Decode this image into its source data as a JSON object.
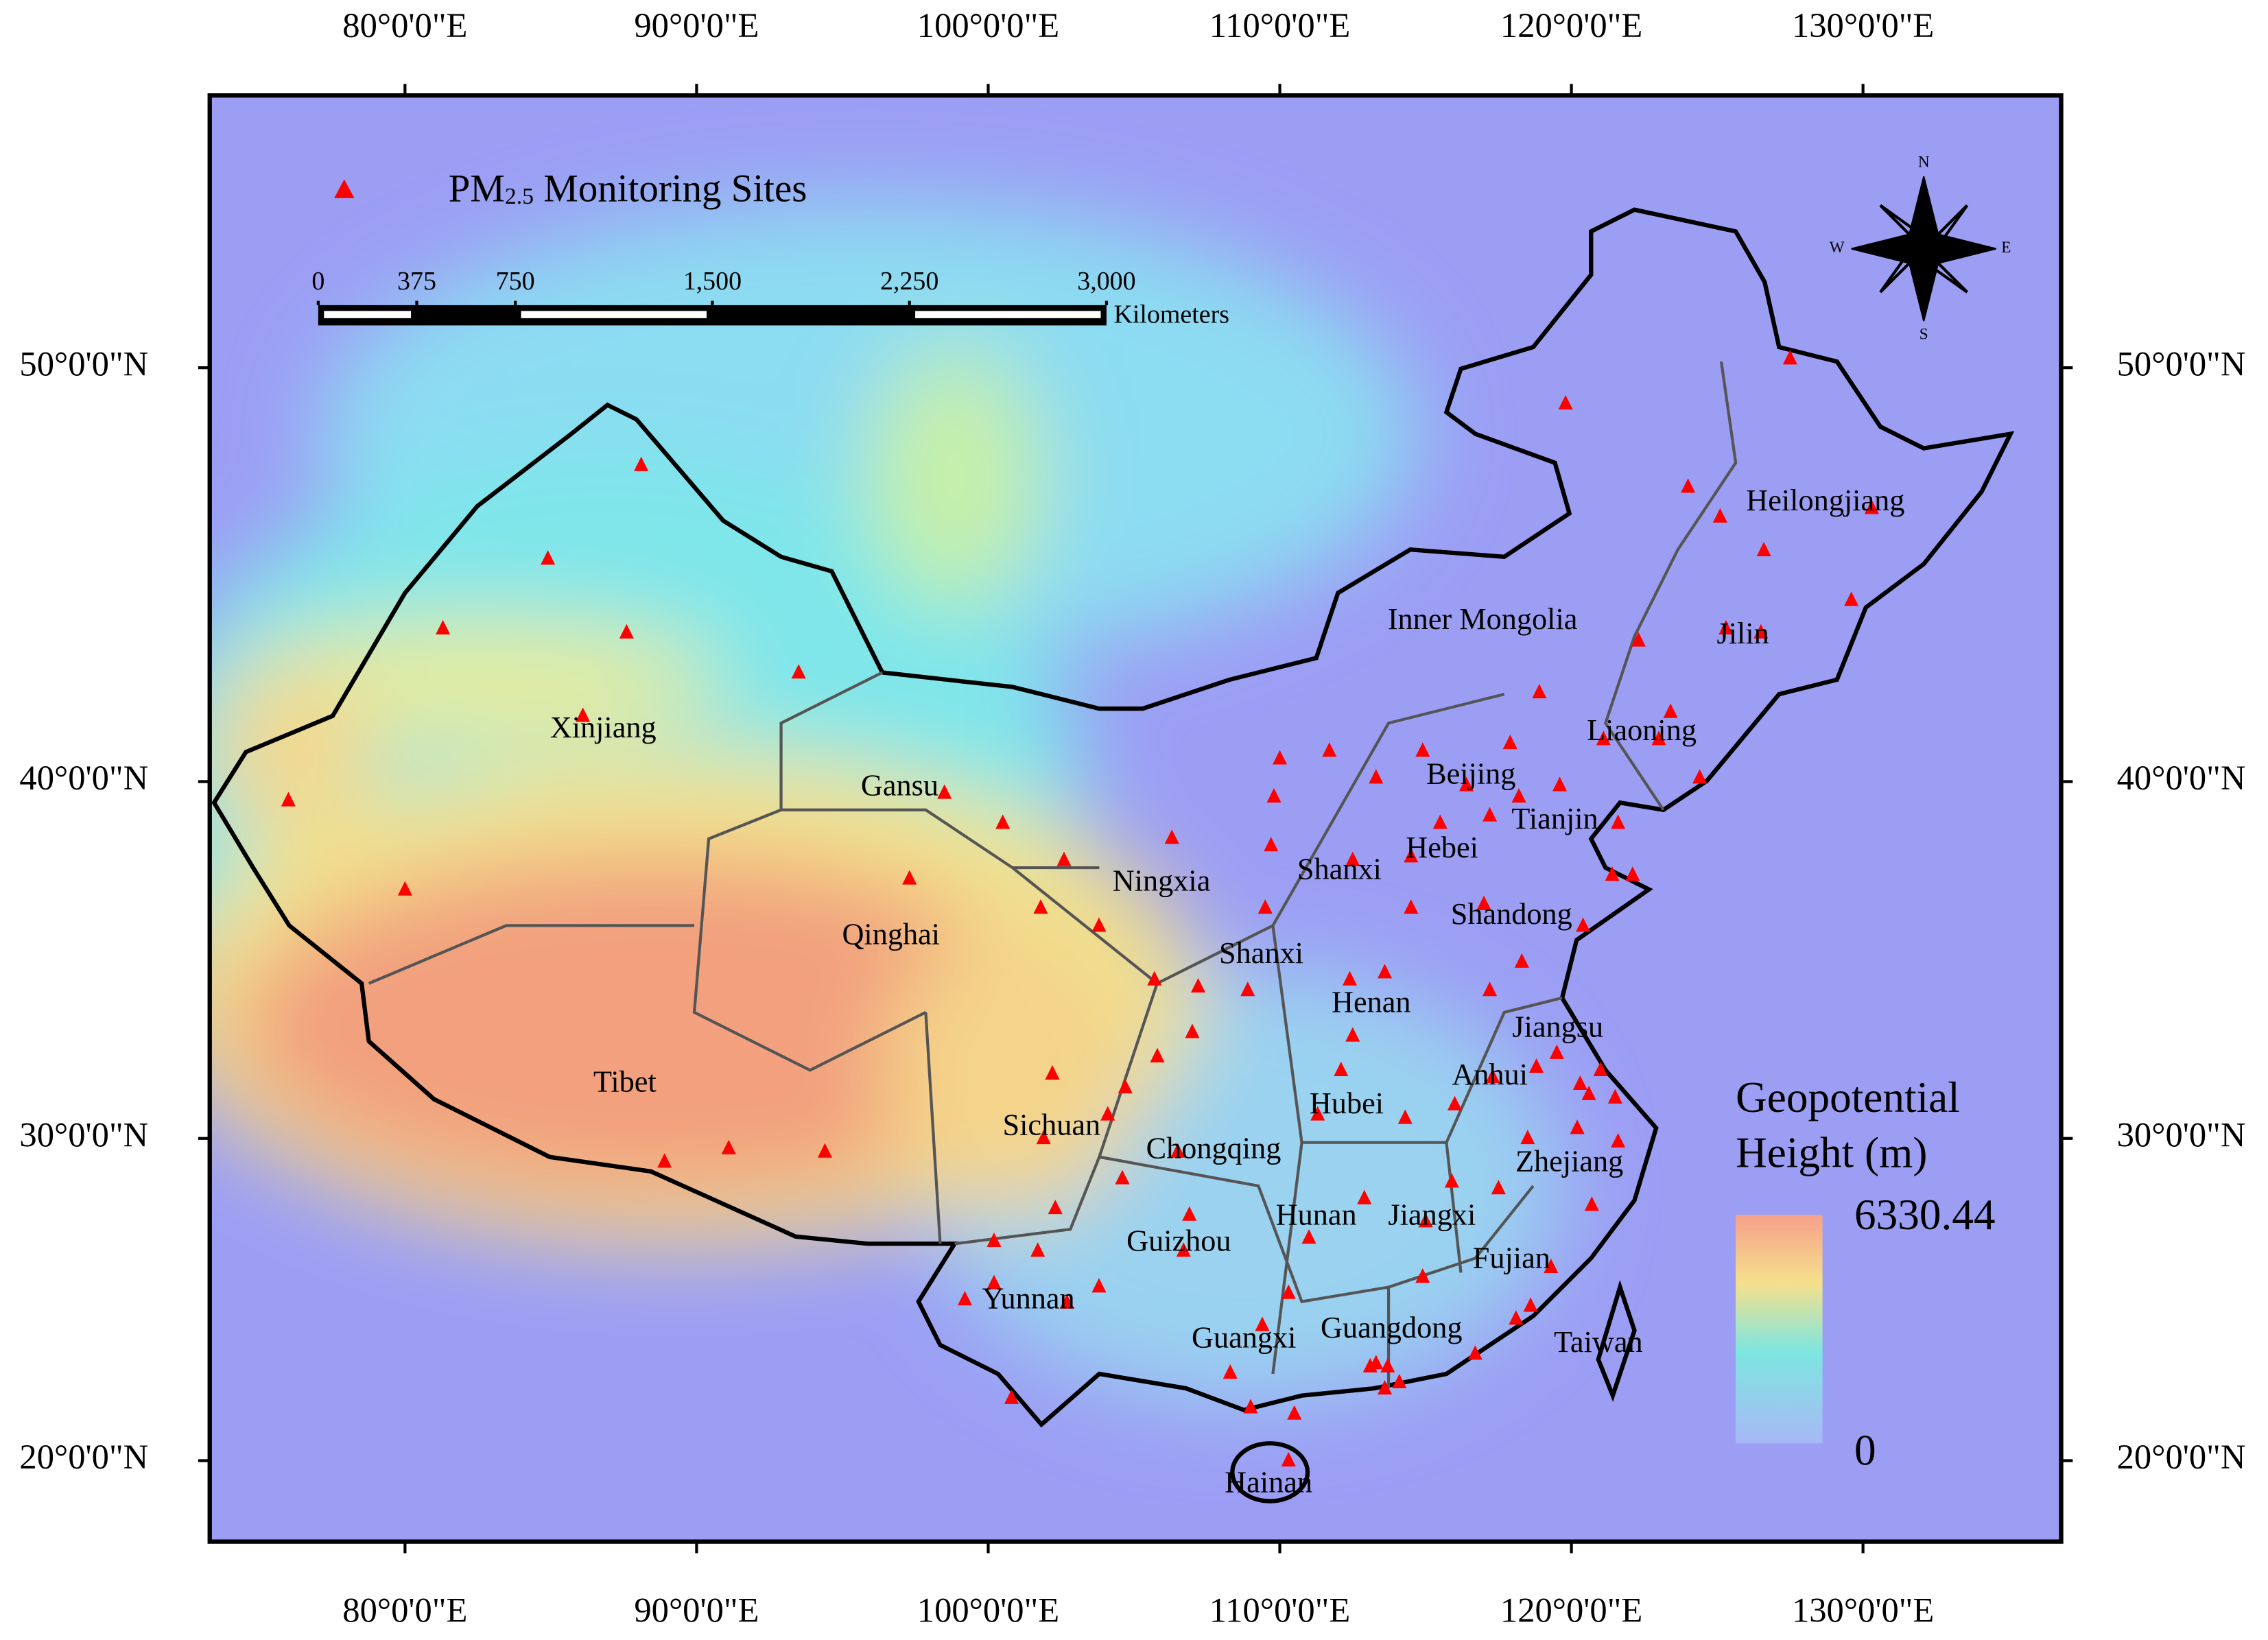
{
  "map": {
    "lon_ticks": [
      {
        "value": 80,
        "label": "80°0'0\"E"
      },
      {
        "value": 90,
        "label": "90°0'0\"E"
      },
      {
        "value": 100,
        "label": "100°0'0\"E"
      },
      {
        "value": 110,
        "label": "110°0'0\"E"
      },
      {
        "value": 120,
        "label": "120°0'0\"E"
      },
      {
        "value": 130,
        "label": "130°0'0\"E"
      }
    ],
    "lat_ticks": [
      {
        "value": 50,
        "label": "50°0'0\"N"
      },
      {
        "value": 40,
        "label": "40°0'0\"N"
      },
      {
        "value": 30,
        "label": "30°0'0\"N"
      },
      {
        "value": 20,
        "label": "20°0'0\"N"
      }
    ],
    "sites_legend": {
      "prefix": "PM",
      "subscript": "2.5",
      "suffix": " Monitoring Sites"
    },
    "sites": [
      [
        116.4,
        39.9
      ],
      [
        117.2,
        39.1
      ],
      [
        121.5,
        31.2
      ],
      [
        113.3,
        23.1
      ],
      [
        114.1,
        22.5
      ],
      [
        104.1,
        30.7
      ],
      [
        106.5,
        29.6
      ],
      [
        114.3,
        30.6
      ],
      [
        108.9,
        34.3
      ],
      [
        103.8,
        36.1
      ],
      [
        87.6,
        43.8
      ],
      [
        91.1,
        29.7
      ],
      [
        126.6,
        45.8
      ],
      [
        123.4,
        41.8
      ],
      [
        121.6,
        38.9
      ],
      [
        117.0,
        36.7
      ],
      [
        120.4,
        36.1
      ],
      [
        113.6,
        34.8
      ],
      [
        118.8,
        32.1
      ],
      [
        117.3,
        31.8
      ],
      [
        120.2,
        30.3
      ],
      [
        119.3,
        26.1
      ],
      [
        118.1,
        24.5
      ],
      [
        115.9,
        28.7
      ],
      [
        112.9,
        28.2
      ],
      [
        106.7,
        26.6
      ],
      [
        102.7,
        25.0
      ],
      [
        108.3,
        22.8
      ],
      [
        110.3,
        20.0
      ],
      [
        112.5,
        37.9
      ],
      [
        114.5,
        38.0
      ],
      [
        111.7,
        40.8
      ],
      [
        106.3,
        38.5
      ],
      [
        101.8,
        36.6
      ],
      [
        125.3,
        43.9
      ],
      [
        126.5,
        43.8
      ],
      [
        120.6,
        31.3
      ],
      [
        120.3,
        31.6
      ],
      [
        121.6,
        29.9
      ],
      [
        120.7,
        28.0
      ],
      [
        110.0,
        40.6
      ],
      [
        113.3,
        40.1
      ],
      [
        109.8,
        39.6
      ],
      [
        119.8,
        49.2
      ],
      [
        127.5,
        50.2
      ],
      [
        124.0,
        47.3
      ],
      [
        130.3,
        46.8
      ],
      [
        129.6,
        44.6
      ],
      [
        125.1,
        46.6
      ],
      [
        84.9,
        45.6
      ],
      [
        76.0,
        39.5
      ],
      [
        80.0,
        37.1
      ],
      [
        86.1,
        41.7
      ],
      [
        93.5,
        42.8
      ],
      [
        81.3,
        43.9
      ],
      [
        88.1,
        47.8
      ],
      [
        88.9,
        29.3
      ],
      [
        94.4,
        29.6
      ],
      [
        97.3,
        37.4
      ],
      [
        118.2,
        39.6
      ],
      [
        115.5,
        38.9
      ],
      [
        114.5,
        36.6
      ],
      [
        118.3,
        35.1
      ],
      [
        117.2,
        34.3
      ],
      [
        112.4,
        34.6
      ],
      [
        112.5,
        33.0
      ],
      [
        111.3,
        30.7
      ],
      [
        112.1,
        32.0
      ],
      [
        104.7,
        31.5
      ],
      [
        104.6,
        28.8
      ],
      [
        106.9,
        27.7
      ],
      [
        109.4,
        24.3
      ],
      [
        110.3,
        25.3
      ],
      [
        116.7,
        23.4
      ],
      [
        113.6,
        22.3
      ],
      [
        113.7,
        23.0
      ],
      [
        113.1,
        23.0
      ],
      [
        114.9,
        25.8
      ],
      [
        118.6,
        24.9
      ],
      [
        121.4,
        37.5
      ],
      [
        122.1,
        37.5
      ],
      [
        124.4,
        40.1
      ],
      [
        123.0,
        41.1
      ],
      [
        121.1,
        41.1
      ],
      [
        118.9,
        42.3
      ],
      [
        122.3,
        43.6
      ],
      [
        114.9,
        40.8
      ],
      [
        117.9,
        41.0
      ],
      [
        119.6,
        39.9
      ],
      [
        109.7,
        38.3
      ],
      [
        109.5,
        36.6
      ],
      [
        105.7,
        34.6
      ],
      [
        107.2,
        34.4
      ],
      [
        107.0,
        33.1
      ],
      [
        105.8,
        32.4
      ],
      [
        100.2,
        25.6
      ],
      [
        100.2,
        26.9
      ],
      [
        100.8,
        22.0
      ],
      [
        99.2,
        25.1
      ],
      [
        103.8,
        25.5
      ],
      [
        101.7,
        26.6
      ],
      [
        102.3,
        27.9
      ],
      [
        101.9,
        30.0
      ],
      [
        102.2,
        31.9
      ],
      [
        100.5,
        38.9
      ],
      [
        98.5,
        39.7
      ],
      [
        102.6,
        37.9
      ],
      [
        116.0,
        31.0
      ],
      [
        118.5,
        30.0
      ],
      [
        111.0,
        27.0
      ],
      [
        115.0,
        27.5
      ],
      [
        117.5,
        28.5
      ],
      [
        119.5,
        32.5
      ],
      [
        121.0,
        32.0
      ],
      [
        110.5,
        21.5
      ],
      [
        109.0,
        21.7
      ]
    ],
    "scale_bar": {
      "ticks": [
        0,
        375,
        750,
        {
          "value": 1500,
          "label": "1,500"
        },
        {
          "value": 2250,
          "label": "2,250"
        },
        {
          "value": 3000,
          "label": "3,000"
        }
      ],
      "unit": "Kilometers"
    },
    "compass": {
      "n": "N",
      "s": "S",
      "e": "E",
      "w": "W"
    },
    "regions": [
      "Xinjiang",
      "Gansu",
      "Qinghai",
      "Tibet",
      "Sichuan",
      "Yunnan",
      "Ningxia",
      "Shanxi",
      "Shanxi",
      "Inner Mongolia",
      "Heilongjiang",
      "Jilin",
      "Liaoning",
      "Beijing",
      "Tianjin",
      "Hebei",
      "Shandong",
      "Henan",
      "Jiangsu",
      "Anhui",
      "Hubei",
      "Chongqing",
      "Zhejiang",
      "Hunan",
      "Jiangxi",
      "Guizhou",
      "Fujian",
      "Guangxi",
      "Guangdong",
      "Taiwan",
      "Hainan"
    ],
    "color_scale": {
      "title": [
        "Geopotential",
        "Height (m)"
      ],
      "max": 6330.44,
      "min": 0
    }
  }
}
